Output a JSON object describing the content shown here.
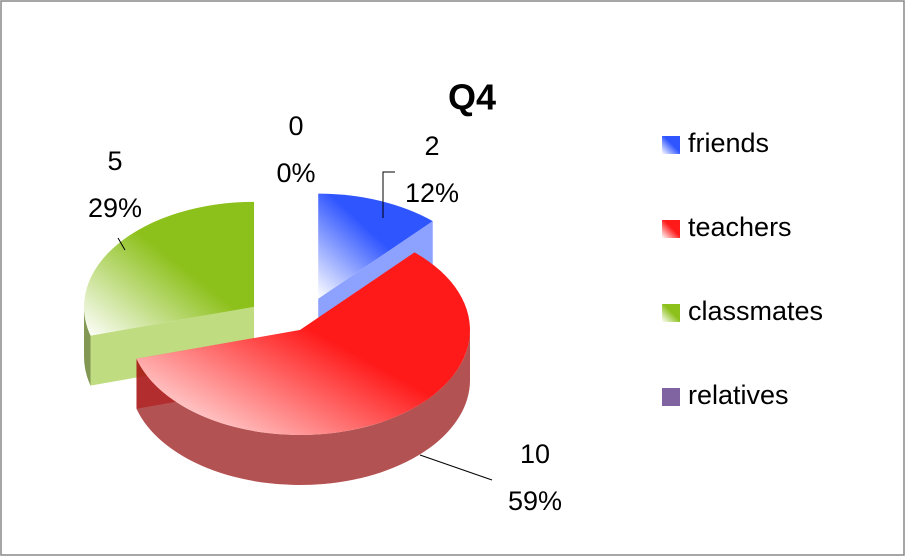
{
  "chart_data": {
    "type": "pie",
    "title": "Q4",
    "categories": [
      "friends",
      "teachers",
      "classmates",
      "relatives"
    ],
    "values": [
      2,
      10,
      5,
      0
    ],
    "percentages": [
      12,
      59,
      29,
      0
    ],
    "percentage_labels": [
      "12%",
      "59%",
      "29%",
      "0%"
    ],
    "colors": [
      "#2f55ff",
      "#ff1a1a",
      "#8cc01a",
      "#8064a2"
    ],
    "legend": "right"
  }
}
